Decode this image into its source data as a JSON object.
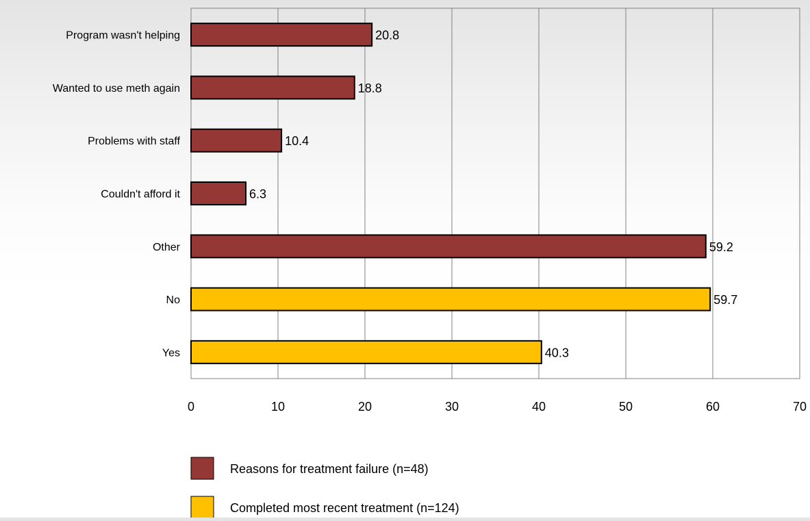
{
  "chart_data": {
    "type": "bar",
    "orientation": "horizontal",
    "categories": [
      "Program wasn't helping",
      "Wanted to use meth again",
      "Problems with staff",
      "Couldn't afford it",
      "Other",
      "No",
      "Yes"
    ],
    "values": [
      20.8,
      18.8,
      10.4,
      6.3,
      59.2,
      59.7,
      40.3
    ],
    "value_labels": [
      "20.8",
      "18.8",
      "10.4",
      "6.3",
      "59.2",
      "59.7",
      "40.3"
    ],
    "bar_series_index": [
      0,
      0,
      0,
      0,
      0,
      1,
      1
    ],
    "series": [
      {
        "name": "Reasons for treatment failure (n=48)",
        "color": "#953735"
      },
      {
        "name": "Completed most recent treatment (n=124)",
        "color": "#FFC000"
      }
    ],
    "title": "",
    "xlabel": "",
    "ylabel": "",
    "xlim": [
      0,
      70
    ],
    "x_ticks": [
      0,
      10,
      20,
      30,
      40,
      50,
      60,
      70
    ],
    "x_tick_labels": [
      "0",
      "10",
      "20",
      "30",
      "40",
      "50",
      "60",
      "70"
    ],
    "grid": "vertical",
    "legend_position": "bottom"
  }
}
